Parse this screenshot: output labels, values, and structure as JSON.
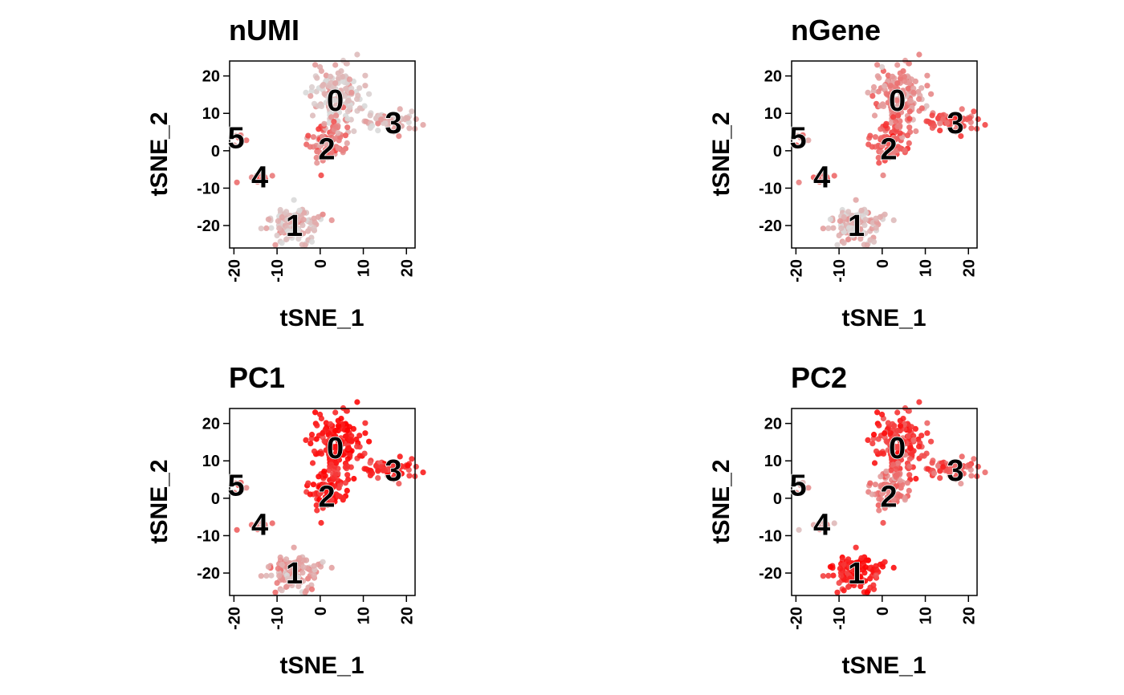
{
  "chart_data": [
    {
      "type": "scatter",
      "title": "nUMI",
      "xlabel": "tSNE_1",
      "ylabel": "tSNE_2",
      "xlim": [
        -21,
        22
      ],
      "ylim": [
        -26,
        24
      ],
      "xticks": [
        "-20",
        "-10",
        "0",
        "10",
        "20"
      ],
      "yticks": [
        "-20",
        "-10",
        "0",
        "10",
        "20"
      ],
      "color_low": "#d9d9d9",
      "color_high": "#ff0000",
      "grid": false,
      "clusters": [
        {
          "label": "0",
          "x": 3.5,
          "y": 13.5,
          "intensity": 0.12
        },
        {
          "label": "1",
          "x": -6,
          "y": -20,
          "intensity": 0.12
        },
        {
          "label": "2",
          "x": 1.5,
          "y": 0.5,
          "intensity": 0.45
        },
        {
          "label": "3",
          "x": 17,
          "y": 7.5,
          "intensity": 0.15
        },
        {
          "label": "4",
          "x": -14,
          "y": -7,
          "intensity": 0.5
        },
        {
          "label": "5",
          "x": -19.5,
          "y": 3.5,
          "intensity": 0.35
        }
      ]
    },
    {
      "type": "scatter",
      "title": "nGene",
      "xlabel": "tSNE_1",
      "ylabel": "tSNE_2",
      "xlim": [
        -21,
        22
      ],
      "ylim": [
        -26,
        24
      ],
      "xticks": [
        "-20",
        "-10",
        "0",
        "10",
        "20"
      ],
      "yticks": [
        "-20",
        "-10",
        "0",
        "10",
        "20"
      ],
      "color_low": "#d9d9d9",
      "color_high": "#ff0000",
      "grid": false,
      "clusters": [
        {
          "label": "0",
          "x": 3.5,
          "y": 13.5,
          "intensity": 0.35
        },
        {
          "label": "1",
          "x": -6,
          "y": -20,
          "intensity": 0.15
        },
        {
          "label": "2",
          "x": 1.5,
          "y": 0.5,
          "intensity": 0.6
        },
        {
          "label": "3",
          "x": 17,
          "y": 7.5,
          "intensity": 0.55
        },
        {
          "label": "4",
          "x": -14,
          "y": -7,
          "intensity": 0.5
        },
        {
          "label": "5",
          "x": -19.5,
          "y": 3.5,
          "intensity": 0.4
        }
      ]
    },
    {
      "type": "scatter",
      "title": "PC1",
      "xlabel": "tSNE_1",
      "ylabel": "tSNE_2",
      "xlim": [
        -21,
        22
      ],
      "ylim": [
        -26,
        24
      ],
      "xticks": [
        "-20",
        "-10",
        "0",
        "10",
        "20"
      ],
      "yticks": [
        "-20",
        "-10",
        "0",
        "10",
        "20"
      ],
      "color_low": "#d9d9d9",
      "color_high": "#ff0000",
      "grid": false,
      "clusters": [
        {
          "label": "0",
          "x": 3.5,
          "y": 13.5,
          "intensity": 0.9
        },
        {
          "label": "1",
          "x": -6,
          "y": -20,
          "intensity": 0.25
        },
        {
          "label": "2",
          "x": 1.5,
          "y": 0.5,
          "intensity": 0.85
        },
        {
          "label": "3",
          "x": 17,
          "y": 7.5,
          "intensity": 0.8
        },
        {
          "label": "4",
          "x": -14,
          "y": -7,
          "intensity": 0.4
        },
        {
          "label": "5",
          "x": -19.5,
          "y": 3.5,
          "intensity": 0.5
        }
      ]
    },
    {
      "type": "scatter",
      "title": "PC2",
      "xlabel": "tSNE_1",
      "ylabel": "tSNE_2",
      "xlim": [
        -21,
        22
      ],
      "ylim": [
        -26,
        24
      ],
      "xticks": [
        "-20",
        "-10",
        "0",
        "10",
        "20"
      ],
      "yticks": [
        "-20",
        "-10",
        "0",
        "10",
        "20"
      ],
      "color_low": "#d9d9d9",
      "color_high": "#ff0000",
      "grid": false,
      "clusters": [
        {
          "label": "0",
          "x": 3.5,
          "y": 13.5,
          "intensity": 0.75
        },
        {
          "label": "1",
          "x": -6,
          "y": -20,
          "intensity": 0.85
        },
        {
          "label": "2",
          "x": 1.5,
          "y": 0.5,
          "intensity": 0.45
        },
        {
          "label": "3",
          "x": 17,
          "y": 7.5,
          "intensity": 0.55
        },
        {
          "label": "4",
          "x": -14,
          "y": -7,
          "intensity": 0.3
        },
        {
          "label": "5",
          "x": -19.5,
          "y": 3.5,
          "intensity": 0.3
        }
      ]
    }
  ]
}
